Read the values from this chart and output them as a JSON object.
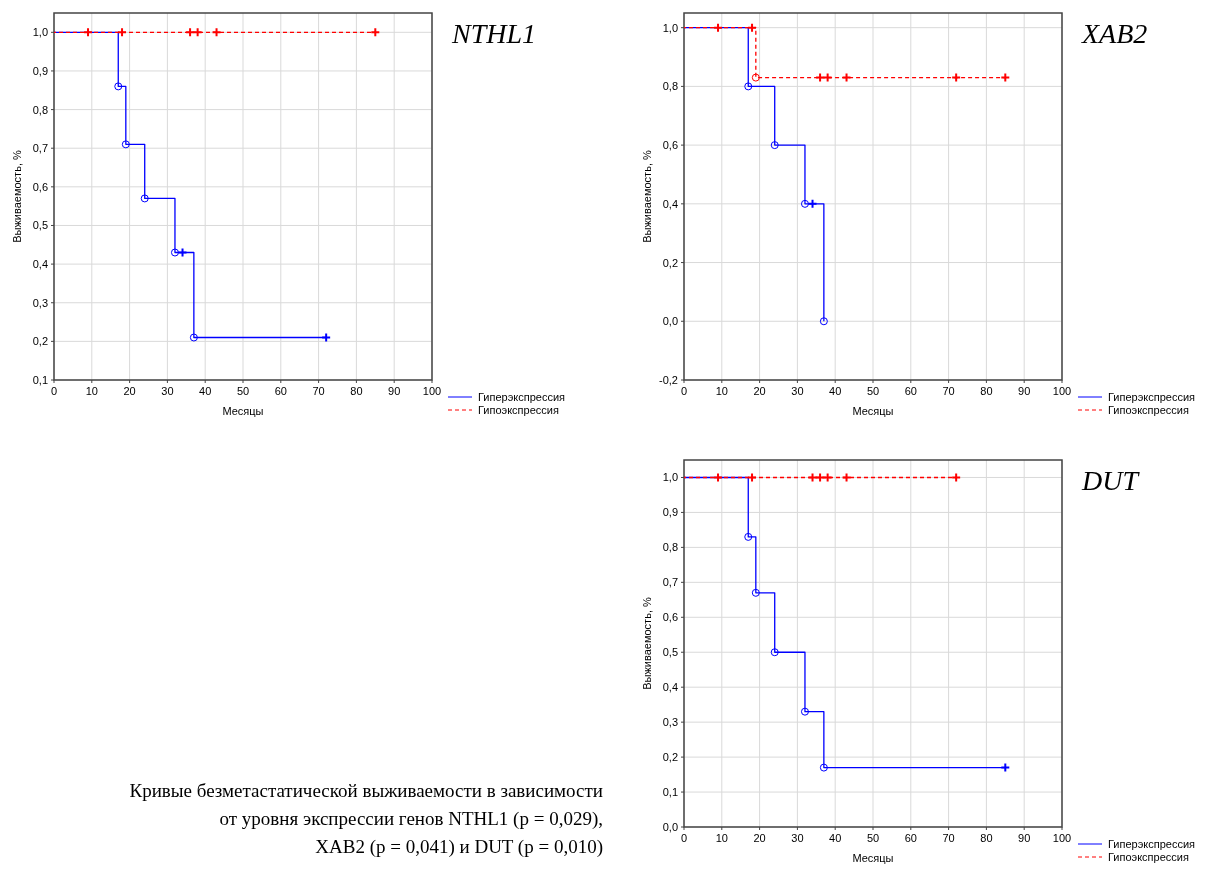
{
  "chart_data": [
    {
      "type": "step",
      "title": "NTHL1",
      "xlabel": "Месяцы",
      "ylabel": "Выживаемость, %",
      "xlim": [
        0,
        100
      ],
      "xticks": [
        0,
        10,
        20,
        30,
        40,
        50,
        60,
        70,
        80,
        90,
        100
      ],
      "ylim": [
        0.1,
        1.05
      ],
      "yticks": [
        {
          "value": 0.1,
          "label": "0,1"
        },
        {
          "value": 0.2,
          "label": "0,2"
        },
        {
          "value": 0.3,
          "label": "0,3"
        },
        {
          "value": 0.4,
          "label": "0,4"
        },
        {
          "value": 0.5,
          "label": "0,5"
        },
        {
          "value": 0.6,
          "label": "0,6"
        },
        {
          "value": 0.7,
          "label": "0,7"
        },
        {
          "value": 0.8,
          "label": "0,8"
        },
        {
          "value": 0.9,
          "label": "0,9"
        },
        {
          "value": 1.0,
          "label": "1,0"
        }
      ],
      "grid": true,
      "legend": "bottom right",
      "series": [
        {
          "name": "Гиперэкспрессия",
          "color": "#0000ff",
          "line_style": "solid",
          "x": [
            0,
            17,
            19,
            24,
            32,
            37,
            72
          ],
          "values": [
            1,
            0.86,
            0.71,
            0.57,
            0.43,
            0.21,
            0.21
          ]
        },
        {
          "name": "Гипоэкспрессия",
          "color": "#ff0000",
          "line_style": "dashed",
          "x": [
            0,
            85
          ],
          "values": [
            1,
            1
          ]
        },
        {
          "type": "scatter",
          "color": "#0000ff",
          "marker": "circle",
          "x": [
            17,
            19,
            24,
            32,
            37
          ],
          "values": [
            0.86,
            0.71,
            0.57,
            0.43,
            0.21
          ]
        },
        {
          "type": "scatter",
          "color": "#0000ff",
          "marker": "cross",
          "x": [
            34,
            72
          ],
          "values": [
            0.43,
            0.21
          ]
        },
        {
          "type": "scatter",
          "color": "#ff0000",
          "marker": "cross",
          "x": [
            9,
            18,
            36,
            38,
            43,
            85
          ],
          "values": [
            1,
            1,
            1,
            1,
            1,
            1
          ]
        }
      ]
    },
    {
      "type": "step",
      "title": "XAB2",
      "xlabel": "Месяцы",
      "ylabel": "Выживаемость, %",
      "xlim": [
        0,
        100
      ],
      "xticks": [
        0,
        10,
        20,
        30,
        40,
        50,
        60,
        70,
        80,
        90,
        100
      ],
      "ylim": [
        -0.2,
        1.05
      ],
      "yticks": [
        {
          "value": -0.2,
          "label": "-0,2"
        },
        {
          "value": 0,
          "label": "0,0"
        },
        {
          "value": 0.2,
          "label": "0,2"
        },
        {
          "value": 0.4,
          "label": "0,4"
        },
        {
          "value": 0.6,
          "label": "0,6"
        },
        {
          "value": 0.8,
          "label": "0,8"
        },
        {
          "value": 1.0,
          "label": "1,0"
        }
      ],
      "grid": true,
      "legend": "bottom right",
      "series": [
        {
          "name": "Гиперэкспрессия",
          "color": "#0000ff",
          "line_style": "solid",
          "x": [
            0,
            17,
            24,
            32,
            37
          ],
          "values": [
            1,
            0.8,
            0.6,
            0.4,
            0
          ]
        },
        {
          "name": "Гипоэкспрессия",
          "color": "#ff0000",
          "line_style": "dashed",
          "x": [
            0,
            19,
            85
          ],
          "values": [
            1,
            0.83,
            0.83
          ]
        },
        {
          "type": "scatter",
          "color": "#0000ff",
          "marker": "circle",
          "x": [
            17,
            24,
            32,
            37
          ],
          "values": [
            0.8,
            0.6,
            0.4,
            0
          ]
        },
        {
          "type": "scatter",
          "color": "#0000ff",
          "marker": "cross",
          "x": [
            34
          ],
          "values": [
            0.4
          ]
        },
        {
          "type": "scatter",
          "color": "#ff0000",
          "marker": "circle",
          "x": [
            19
          ],
          "values": [
            0.83
          ]
        },
        {
          "type": "scatter",
          "color": "#ff0000",
          "marker": "cross",
          "x": [
            9,
            18,
            36,
            38,
            43,
            72,
            85
          ],
          "values": [
            1,
            1,
            0.83,
            0.83,
            0.83,
            0.83,
            0.83
          ]
        }
      ]
    },
    {
      "type": "step",
      "title": "DUT",
      "xlabel": "Месяцы",
      "ylabel": "Выживаемость, %",
      "xlim": [
        0,
        100
      ],
      "xticks": [
        0,
        10,
        20,
        30,
        40,
        50,
        60,
        70,
        80,
        90,
        100
      ],
      "ylim": [
        0,
        1.05
      ],
      "yticks": [
        {
          "value": 0,
          "label": "0,0"
        },
        {
          "value": 0.1,
          "label": "0,1"
        },
        {
          "value": 0.2,
          "label": "0,2"
        },
        {
          "value": 0.3,
          "label": "0,3"
        },
        {
          "value": 0.4,
          "label": "0,4"
        },
        {
          "value": 0.5,
          "label": "0,5"
        },
        {
          "value": 0.6,
          "label": "0,6"
        },
        {
          "value": 0.7,
          "label": "0,7"
        },
        {
          "value": 0.8,
          "label": "0,8"
        },
        {
          "value": 0.9,
          "label": "0,9"
        },
        {
          "value": 1.0,
          "label": "1,0"
        }
      ],
      "grid": true,
      "legend": "bottom right",
      "annotations": [
        "Кривые безметастатической выживаемости в зависимости\nот уровня экспрессии генов NTHL1 (p = 0,029),\nXAB2 (p = 0,041) и DUT (p = 0,010)"
      ],
      "series": [
        {
          "name": "Гиперэкспрессия",
          "color": "#0000ff",
          "line_style": "solid",
          "x": [
            0,
            17,
            19,
            24,
            32,
            37,
            85
          ],
          "values": [
            1,
            0.83,
            0.67,
            0.5,
            0.33,
            0.17,
            0.17
          ]
        },
        {
          "name": "Гипоэкспрессия",
          "color": "#ff0000",
          "line_style": "dashed",
          "x": [
            0,
            72
          ],
          "values": [
            1,
            1
          ]
        },
        {
          "type": "scatter",
          "color": "#0000ff",
          "marker": "circle",
          "x": [
            17,
            19,
            24,
            32,
            37
          ],
          "values": [
            0.83,
            0.67,
            0.5,
            0.33,
            0.17
          ]
        },
        {
          "type": "scatter",
          "color": "#0000ff",
          "marker": "cross",
          "x": [
            85
          ],
          "values": [
            0.17
          ]
        },
        {
          "type": "scatter",
          "color": "#ff0000",
          "marker": "cross",
          "x": [
            9,
            18,
            34,
            36,
            38,
            43,
            72
          ],
          "values": [
            1,
            1,
            1,
            1,
            1,
            1,
            1
          ]
        }
      ]
    }
  ]
}
